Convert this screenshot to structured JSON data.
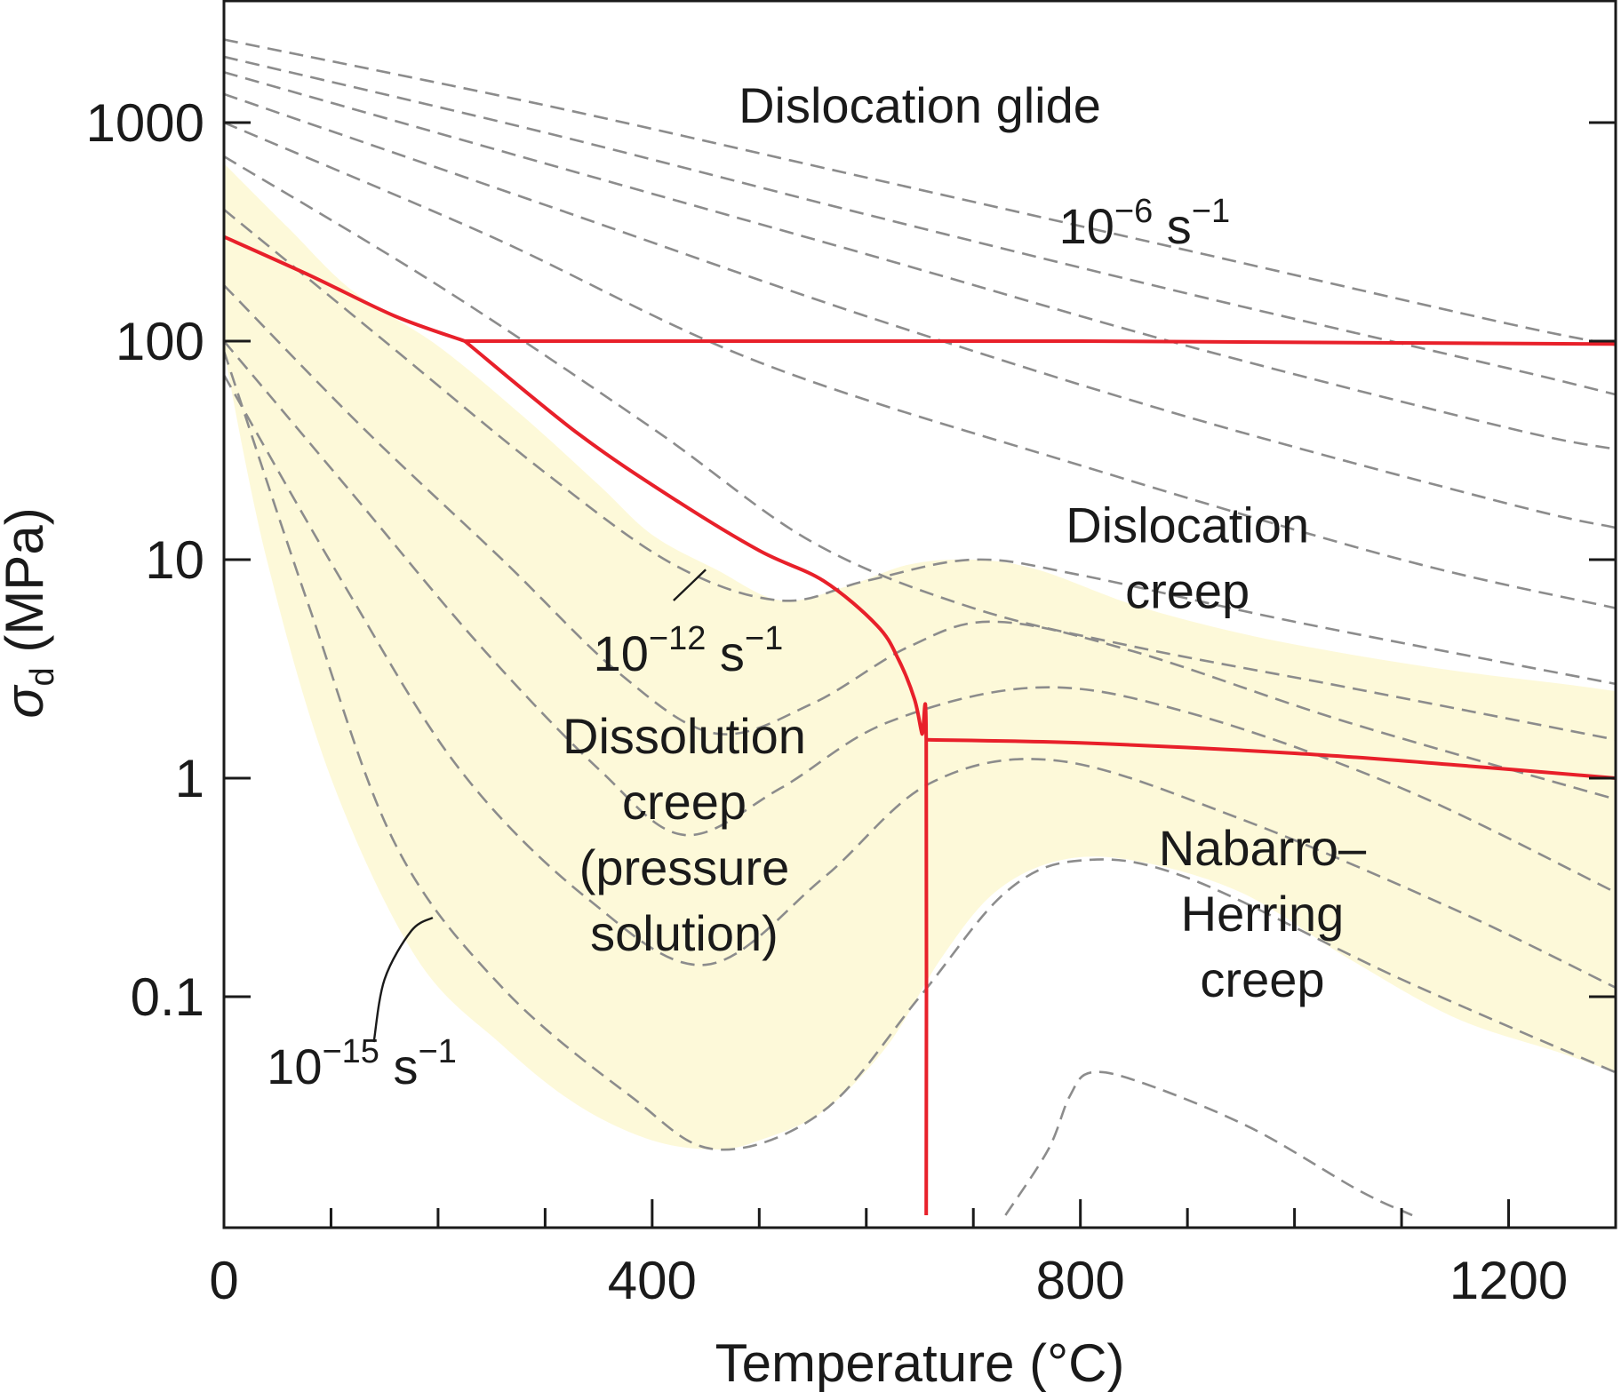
{
  "chart_data": {
    "type": "line",
    "xlabel": "Temperature (°C)",
    "ylabel": {
      "base": "σ",
      "subscript": "d",
      "unit": " (MPa)"
    },
    "xlim": [
      0,
      1300
    ],
    "ylim": [
      0.01,
      3000
    ],
    "y_scale": "log",
    "x_ticks": [
      0,
      400,
      800,
      1200
    ],
    "x_ticks_minor": [
      100,
      200,
      300,
      500,
      600,
      700,
      900,
      1000,
      1100
    ],
    "y_ticks": [
      {
        "value": 1000,
        "label": "1000"
      },
      {
        "value": 100,
        "label": "100"
      },
      {
        "value": 10,
        "label": "10"
      },
      {
        "value": 1,
        "label": "1"
      },
      {
        "value": 0.1,
        "label": "0.1"
      }
    ],
    "grid": false,
    "colors": {
      "boundary": "#e8202a",
      "contour": "#8c8c8c",
      "region_fill": "#fdf9d9",
      "axis": "#1a1a1a"
    },
    "regions": [
      {
        "name": "dislocation-glide",
        "lines": [
          "Dislocation glide"
        ],
        "at": [
          650,
          1000
        ]
      },
      {
        "name": "dislocation-creep",
        "lines": [
          "Dislocation",
          "creep"
        ],
        "at": [
          900,
          12
        ]
      },
      {
        "name": "dissolution-creep",
        "lines": [
          "Dissolution",
          "creep",
          "(pressure",
          "solution)"
        ],
        "at": [
          430,
          1.3
        ]
      },
      {
        "name": "nabarro-herring-creep",
        "lines": [
          "Nabarro–",
          "Herring",
          "creep"
        ],
        "at": [
          970,
          0.4
        ]
      }
    ],
    "rate_labels": [
      {
        "name": "rate-label-1e-6",
        "base": "10",
        "exp": "−6",
        "unit": " s",
        "unit_exp": "−1",
        "at": [
          780,
          280
        ]
      },
      {
        "name": "rate-label-1e-12",
        "base": "10",
        "exp": "−12",
        "unit": " s",
        "unit_exp": "−1",
        "at": [
          345,
          3.1
        ]
      },
      {
        "name": "rate-label-1e-15",
        "base": "10",
        "exp": "−15",
        "unit": " s",
        "unit_exp": "−1",
        "at": [
          40,
          0.04
        ]
      }
    ],
    "leader_lines": [
      {
        "name": "leader-1e-12",
        "points": [
          [
            420,
            6.5
          ],
          [
            450,
            9.0
          ]
        ]
      },
      {
        "name": "leader-1e-15",
        "points": [
          [
            140,
            0.062
          ],
          [
            150,
            0.12
          ],
          [
            175,
            0.2
          ],
          [
            195,
            0.23
          ]
        ]
      }
    ],
    "shaded_region": {
      "upper": [
        [
          0,
          650
        ],
        [
          60,
          330
        ],
        [
          120,
          170
        ],
        [
          200,
          95
        ],
        [
          280,
          45
        ],
        [
          350,
          22
        ],
        [
          400,
          13
        ],
        [
          460,
          9
        ],
        [
          520,
          6.5
        ],
        [
          580,
          7.5
        ],
        [
          640,
          9.5
        ],
        [
          700,
          10
        ],
        [
          760,
          9
        ],
        [
          850,
          6.2
        ],
        [
          950,
          4.6
        ],
        [
          1050,
          3.7
        ],
        [
          1150,
          3.1
        ],
        [
          1250,
          2.7
        ],
        [
          1300,
          2.5
        ]
      ],
      "lower": [
        [
          1300,
          0.045
        ],
        [
          1250,
          0.055
        ],
        [
          1150,
          0.08
        ],
        [
          1050,
          0.15
        ],
        [
          950,
          0.3
        ],
        [
          850,
          0.42
        ],
        [
          780,
          0.42
        ],
        [
          720,
          0.3
        ],
        [
          670,
          0.15
        ],
        [
          620,
          0.06
        ],
        [
          560,
          0.03
        ],
        [
          500,
          0.022
        ],
        [
          460,
          0.02
        ],
        [
          400,
          0.022
        ],
        [
          330,
          0.032
        ],
        [
          260,
          0.06
        ],
        [
          180,
          0.15
        ],
        [
          100,
          1.0
        ],
        [
          40,
          10
        ],
        [
          0,
          90
        ]
      ]
    },
    "boundaries": [
      {
        "name": "glide-creep-boundary",
        "points": [
          [
            0,
            300
          ],
          [
            80,
            200
          ],
          [
            160,
            130
          ],
          [
            225,
            100
          ],
          [
            228,
            100
          ],
          [
            800,
            100
          ],
          [
            1300,
            97
          ]
        ]
      },
      {
        "name": "dissolution-dislocation-boundary",
        "points": [
          [
            225,
            100
          ],
          [
            330,
            38
          ],
          [
            420,
            19
          ],
          [
            500,
            11
          ],
          [
            560,
            8
          ],
          [
            610,
            5
          ],
          [
            630,
            3.5
          ],
          [
            645,
            2.3
          ],
          [
            652,
            1.6
          ],
          [
            656,
            1.5
          ],
          [
            656,
            0.01
          ]
        ]
      },
      {
        "name": "dislocation-nabarro-boundary",
        "points": [
          [
            656,
            1.5
          ],
          [
            800,
            1.45
          ],
          [
            1000,
            1.3
          ],
          [
            1150,
            1.15
          ],
          [
            1300,
            1.0
          ]
        ]
      }
    ],
    "series": [
      {
        "values": [
          [
            0,
            2400
          ],
          [
            300,
            1200
          ],
          [
            600,
            560
          ],
          [
            900,
            260
          ],
          [
            1200,
            120
          ],
          [
            1300,
            96
          ]
        ]
      },
      {
        "values": [
          [
            0,
            2000
          ],
          [
            300,
            900
          ],
          [
            600,
            380
          ],
          [
            900,
            165
          ],
          [
            1200,
            75
          ],
          [
            1300,
            57
          ]
        ]
      },
      {
        "values": [
          [
            0,
            1700
          ],
          [
            300,
            650
          ],
          [
            600,
            250
          ],
          [
            900,
            95
          ],
          [
            1200,
            40
          ],
          [
            1300,
            32
          ]
        ]
      },
      {
        "values": [
          [
            0,
            1350
          ],
          [
            300,
            420
          ],
          [
            600,
            130
          ],
          [
            900,
            45
          ],
          [
            1200,
            18
          ],
          [
            1300,
            14
          ]
        ]
      },
      {
        "values": [
          [
            0,
            1000
          ],
          [
            250,
            300
          ],
          [
            500,
            80
          ],
          [
            800,
            27
          ],
          [
            1100,
            10
          ],
          [
            1300,
            6
          ]
        ]
      },
      {
        "values": [
          [
            0,
            700
          ],
          [
            200,
            180
          ],
          [
            400,
            40
          ],
          [
            550,
            12
          ],
          [
            700,
            6
          ],
          [
            850,
            4
          ],
          [
            1050,
            2.6
          ],
          [
            1300,
            1.5
          ]
        ]
      },
      {
        "values": [
          [
            0,
            400
          ],
          [
            150,
            100
          ],
          [
            300,
            25
          ],
          [
            420,
            9.5
          ],
          [
            520,
            6.5
          ],
          [
            600,
            8
          ],
          [
            700,
            10
          ],
          [
            800,
            8.5
          ],
          [
            1000,
            5.2
          ],
          [
            1300,
            2.7
          ]
        ]
      },
      {
        "values": [
          [
            0,
            180
          ],
          [
            130,
            40
          ],
          [
            260,
            10
          ],
          [
            370,
            3
          ],
          [
            460,
            1.6
          ],
          [
            550,
            2.2
          ],
          [
            640,
            4
          ],
          [
            720,
            5.2
          ],
          [
            850,
            3.8
          ],
          [
            1050,
            1.8
          ],
          [
            1300,
            0.8
          ]
        ]
      },
      {
        "values": [
          [
            0,
            100
          ],
          [
            120,
            20
          ],
          [
            240,
            4
          ],
          [
            350,
            1.1
          ],
          [
            430,
            0.55
          ],
          [
            520,
            0.9
          ],
          [
            620,
            1.8
          ],
          [
            760,
            2.6
          ],
          [
            900,
            2
          ],
          [
            1100,
            0.9
          ],
          [
            1300,
            0.3
          ]
        ]
      },
      {
        "values": [
          [
            0,
            70
          ],
          [
            110,
            8
          ],
          [
            220,
            1.1
          ],
          [
            340,
            0.28
          ],
          [
            450,
            0.14
          ],
          [
            560,
            0.35
          ],
          [
            660,
            0.95
          ],
          [
            780,
            1.2
          ],
          [
            950,
            0.65
          ],
          [
            1150,
            0.25
          ],
          [
            1300,
            0.11
          ]
        ]
      },
      {
        "values": [
          [
            0,
            90
          ],
          [
            80,
            6
          ],
          [
            160,
            0.5
          ],
          [
            260,
            0.11
          ],
          [
            380,
            0.035
          ],
          [
            460,
            0.02
          ],
          [
            560,
            0.03
          ],
          [
            650,
            0.1
          ],
          [
            730,
            0.3
          ],
          [
            800,
            0.42
          ],
          [
            900,
            0.35
          ],
          [
            1100,
            0.12
          ],
          [
            1300,
            0.045
          ]
        ]
      },
      {
        "values": [
          [
            730,
            0.01
          ],
          [
            770,
            0.02
          ],
          [
            790,
            0.035
          ],
          [
            810,
            0.045
          ],
          [
            860,
            0.04
          ],
          [
            960,
            0.025
          ],
          [
            1060,
            0.013
          ],
          [
            1110,
            0.01
          ]
        ]
      }
    ]
  }
}
